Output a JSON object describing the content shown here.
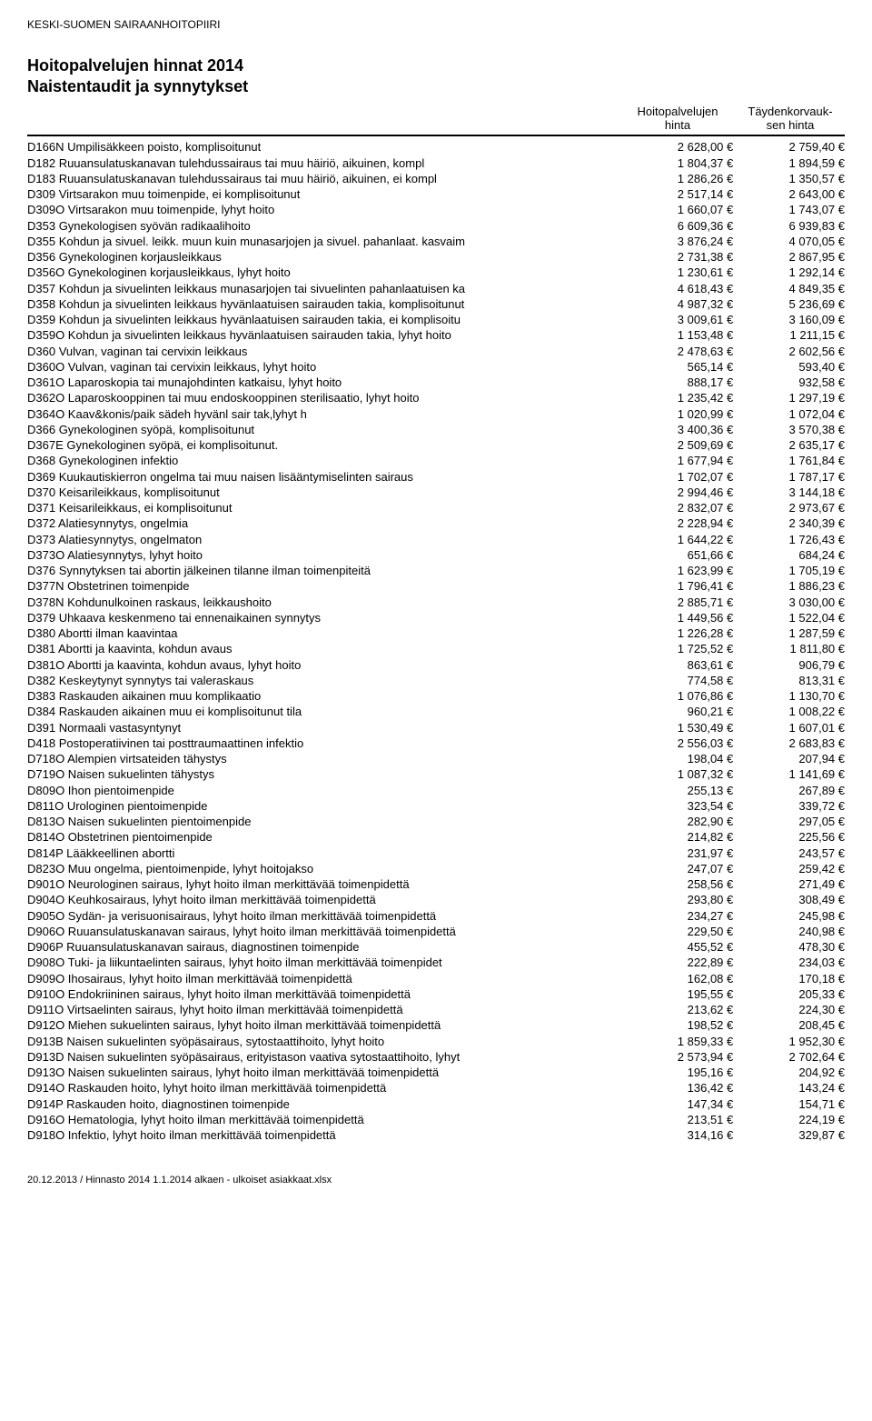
{
  "org": "KESKI-SUOMEN SAIRAANHOITOPIIRI",
  "title": "Hoitopalvelujen hinnat 2014",
  "subtitle": "Naistentaudit ja synnytykset",
  "col1_top": "Hoitopalvelujen",
  "col1_bot": "hinta",
  "col2_top": "Täydenkorvauk-",
  "col2_bot": "sen hinta",
  "footer": "20.12.2013 / Hinnasto 2014 1.1.2014 alkaen - ulkoiset asiakkaat.xlsx",
  "rows": [
    {
      "d": "D166N Umpilisäkkeen poisto, komplisoitunut",
      "a": "2 628,00 €",
      "b": "2 759,40 €"
    },
    {
      "d": "D182 Ruuansulatuskanavan tulehdussairaus tai muu häiriö, aikuinen, kompl",
      "a": "1 804,37 €",
      "b": "1 894,59 €"
    },
    {
      "d": "D183 Ruuansulatuskanavan tulehdussairaus tai muu häiriö, aikuinen, ei kompl",
      "a": "1 286,26 €",
      "b": "1 350,57 €"
    },
    {
      "d": "D309 Virtsarakon muu toimenpide, ei komplisoitunut",
      "a": "2 517,14 €",
      "b": "2 643,00 €"
    },
    {
      "d": "D309O Virtsarakon muu toimenpide, lyhyt hoito",
      "a": "1 660,07 €",
      "b": "1 743,07 €"
    },
    {
      "d": "D353 Gynekologisen syövän radikaalihoito",
      "a": "6 609,36 €",
      "b": "6 939,83 €"
    },
    {
      "d": "D355 Kohdun ja sivuel. leikk. muun kuin munasarjojen ja sivuel. pahanlaat. kasvaim",
      "a": "3 876,24 €",
      "b": "4 070,05 €"
    },
    {
      "d": "D356 Gynekologinen korjausleikkaus",
      "a": "2 731,38 €",
      "b": "2 867,95 €"
    },
    {
      "d": "D356O Gynekologinen korjausleikkaus, lyhyt hoito",
      "a": "1 230,61 €",
      "b": "1 292,14 €"
    },
    {
      "d": "D357 Kohdun ja sivuelinten leikkaus munasarjojen tai sivuelinten pahanlaatuisen ka",
      "a": "4 618,43 €",
      "b": "4 849,35 €"
    },
    {
      "d": "D358 Kohdun ja sivuelinten leikkaus hyvänlaatuisen sairauden takia, komplisoitunut",
      "a": "4 987,32 €",
      "b": "5 236,69 €"
    },
    {
      "d": "D359 Kohdun ja sivuelinten leikkaus hyvänlaatuisen sairauden takia, ei komplisoitu",
      "a": "3 009,61 €",
      "b": "3 160,09 €"
    },
    {
      "d": "D359O Kohdun ja sivuelinten leikkaus hyvänlaatuisen sairauden takia, lyhyt hoito",
      "a": "1 153,48 €",
      "b": "1 211,15 €"
    },
    {
      "d": "D360 Vulvan, vaginan tai cervixin leikkaus",
      "a": "2 478,63 €",
      "b": "2 602,56 €"
    },
    {
      "d": "D360O Vulvan, vaginan tai cervixin leikkaus, lyhyt hoito",
      "a": "565,14 €",
      "b": "593,40 €"
    },
    {
      "d": "D361O Laparoskopia tai munajohdinten katkaisu, lyhyt hoito",
      "a": "888,17 €",
      "b": "932,58 €"
    },
    {
      "d": "D362O Laparoskooppinen tai muu endoskooppinen sterilisaatio, lyhyt hoito",
      "a": "1 235,42 €",
      "b": "1 297,19 €"
    },
    {
      "d": "D364O Kaav&konis/paik sädeh hyvänl sair tak,lyhyt h",
      "a": "1 020,99 €",
      "b": "1 072,04 €"
    },
    {
      "d": "D366 Gynekologinen syöpä, komplisoitunut",
      "a": "3 400,36 €",
      "b": "3 570,38 €"
    },
    {
      "d": "D367E Gynekologinen syöpä, ei komplisoitunut.",
      "a": "2 509,69 €",
      "b": "2 635,17 €"
    },
    {
      "d": "D368 Gynekologinen infektio",
      "a": "1 677,94 €",
      "b": "1 761,84 €"
    },
    {
      "d": "D369 Kuukautiskierron ongelma tai muu naisen lisääntymiselinten sairaus",
      "a": "1 702,07 €",
      "b": "1 787,17 €"
    },
    {
      "d": "D370 Keisarileikkaus, komplisoitunut",
      "a": "2 994,46 €",
      "b": "3 144,18 €"
    },
    {
      "d": "D371 Keisarileikkaus, ei komplisoitunut",
      "a": "2 832,07 €",
      "b": "2 973,67 €"
    },
    {
      "d": "D372 Alatiesynnytys, ongelmia",
      "a": "2 228,94 €",
      "b": "2 340,39 €"
    },
    {
      "d": "D373 Alatiesynnytys, ongelmaton",
      "a": "1 644,22 €",
      "b": "1 726,43 €"
    },
    {
      "d": "D373O Alatiesynnytys, lyhyt hoito",
      "a": "651,66 €",
      "b": "684,24 €"
    },
    {
      "d": "D376 Synnytyksen tai abortin jälkeinen tilanne ilman toimenpiteitä",
      "a": "1 623,99 €",
      "b": "1 705,19 €"
    },
    {
      "d": "D377N Obstetrinen toimenpide",
      "a": "1 796,41 €",
      "b": "1 886,23 €"
    },
    {
      "d": "D378N Kohdunulkoinen raskaus, leikkaushoito",
      "a": "2 885,71 €",
      "b": "3 030,00 €"
    },
    {
      "d": "D379 Uhkaava keskenmeno tai ennenaikainen synnytys",
      "a": "1 449,56 €",
      "b": "1 522,04 €"
    },
    {
      "d": "D380 Abortti ilman kaavintaa",
      "a": "1 226,28 €",
      "b": "1 287,59 €"
    },
    {
      "d": "D381 Abortti ja kaavinta, kohdun avaus",
      "a": "1 725,52 €",
      "b": "1 811,80 €"
    },
    {
      "d": "D381O Abortti ja kaavinta, kohdun avaus, lyhyt hoito",
      "a": "863,61 €",
      "b": "906,79 €"
    },
    {
      "d": "D382 Keskeytynyt synnytys tai valeraskaus",
      "a": "774,58 €",
      "b": "813,31 €"
    },
    {
      "d": "D383 Raskauden aikainen muu komplikaatio",
      "a": "1 076,86 €",
      "b": "1 130,70 €"
    },
    {
      "d": "D384 Raskauden aikainen muu ei komplisoitunut tila",
      "a": "960,21 €",
      "b": "1 008,22 €"
    },
    {
      "d": "D391 Normaali vastasyntynyt",
      "a": "1 530,49 €",
      "b": "1 607,01 €"
    },
    {
      "d": "D418 Postoperatiivinen tai posttraumaattinen infektio",
      "a": "2 556,03 €",
      "b": "2 683,83 €"
    },
    {
      "d": "D718O Alempien virtsateiden tähystys",
      "a": "198,04 €",
      "b": "207,94 €"
    },
    {
      "d": "D719O Naisen sukuelinten tähystys",
      "a": "1 087,32 €",
      "b": "1 141,69 €"
    },
    {
      "d": "D809O Ihon pientoimenpide",
      "a": "255,13 €",
      "b": "267,89 €"
    },
    {
      "d": "D811O Urologinen pientoimenpide",
      "a": "323,54 €",
      "b": "339,72 €"
    },
    {
      "d": "D813O Naisen sukuelinten pientoimenpide",
      "a": "282,90 €",
      "b": "297,05 €"
    },
    {
      "d": "D814O Obstetrinen pientoimenpide",
      "a": "214,82 €",
      "b": "225,56 €"
    },
    {
      "d": "D814P Lääkkeellinen abortti",
      "a": "231,97 €",
      "b": "243,57 €"
    },
    {
      "d": "D823O Muu ongelma, pientoimenpide, lyhyt hoitojakso",
      "a": "247,07 €",
      "b": "259,42 €"
    },
    {
      "d": "D901O Neurologinen sairaus, lyhyt hoito ilman merkittävää toimenpidettä",
      "a": "258,56 €",
      "b": "271,49 €"
    },
    {
      "d": "D904O Keuhkosairaus, lyhyt hoito ilman merkittävää toimenpidettä",
      "a": "293,80 €",
      "b": "308,49 €"
    },
    {
      "d": "D905O Sydän- ja verisuonisairaus, lyhyt hoito ilman merkittävää toimenpidettä",
      "a": "234,27 €",
      "b": "245,98 €"
    },
    {
      "d": "D906O Ruuansulatuskanavan sairaus, lyhyt hoito ilman merkittävää toimenpidettä",
      "a": "229,50 €",
      "b": "240,98 €"
    },
    {
      "d": "D906P Ruuansulatuskanavan sairaus, diagnostinen toimenpide",
      "a": "455,52 €",
      "b": "478,30 €"
    },
    {
      "d": "D908O Tuki- ja liikuntaelinten sairaus, lyhyt hoito ilman merkittävää toimenpidet",
      "a": "222,89 €",
      "b": "234,03 €"
    },
    {
      "d": "D909O Ihosairaus, lyhyt hoito ilman merkittävää toimenpidettä",
      "a": "162,08 €",
      "b": "170,18 €"
    },
    {
      "d": "D910O Endokriininen sairaus, lyhyt hoito ilman merkittävää toimenpidettä",
      "a": "195,55 €",
      "b": "205,33 €"
    },
    {
      "d": "D911O Virtsaelinten sairaus, lyhyt hoito ilman merkittävää toimenpidettä",
      "a": "213,62 €",
      "b": "224,30 €"
    },
    {
      "d": "D912O Miehen sukuelinten sairaus, lyhyt hoito ilman merkittävää toimenpidettä",
      "a": "198,52 €",
      "b": "208,45 €"
    },
    {
      "d": "D913B Naisen sukuelinten syöpäsairaus, sytostaattihoito, lyhyt hoito",
      "a": "1 859,33 €",
      "b": "1 952,30 €"
    },
    {
      "d": "D913D Naisen sukuelinten syöpäsairaus, erityistason vaativa sytostaattihoito, lyhyt",
      "a": "2 573,94 €",
      "b": "2 702,64 €"
    },
    {
      "d": "D913O Naisen sukuelinten sairaus, lyhyt hoito ilman merkittävää toimenpidettä",
      "a": "195,16 €",
      "b": "204,92 €"
    },
    {
      "d": "D914O Raskauden hoito, lyhyt hoito ilman merkittävää toimenpidettä",
      "a": "136,42 €",
      "b": "143,24 €"
    },
    {
      "d": "D914P Raskauden hoito, diagnostinen toimenpide",
      "a": "147,34 €",
      "b": "154,71 €"
    },
    {
      "d": "D916O Hematologia, lyhyt hoito ilman merkittävää toimenpidettä",
      "a": "213,51 €",
      "b": "224,19 €"
    },
    {
      "d": "D918O Infektio, lyhyt hoito ilman merkittävää toimenpidettä",
      "a": "314,16 €",
      "b": "329,87 €"
    }
  ]
}
